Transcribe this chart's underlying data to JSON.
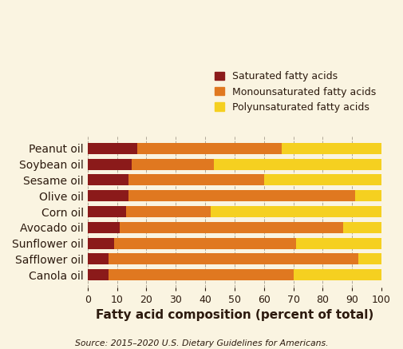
{
  "oils": [
    "Peanut oil",
    "Soybean oil",
    "Sesame oil",
    "Olive oil",
    "Corn oil",
    "Avocado oil",
    "Sunflower oil",
    "Safflower oil",
    "Canola oil"
  ],
  "saturated": [
    17,
    15,
    14,
    14,
    13,
    11,
    9,
    7,
    7
  ],
  "monounsaturated": [
    49,
    28,
    46,
    77,
    29,
    76,
    62,
    85,
    63
  ],
  "polyunsaturated": [
    34,
    57,
    40,
    9,
    58,
    13,
    29,
    8,
    30
  ],
  "colors": {
    "saturated": "#8B1A1A",
    "monounsaturated": "#E07820",
    "polyunsaturated": "#F5D020"
  },
  "background_color": "#FAF4E1",
  "xlabel": "Fatty acid composition (percent of total)",
  "source": "Source: 2015–2020 U.S. Dietary Guidelines for Americans.",
  "legend_labels": [
    "Saturated fatty acids",
    "Monounsaturated fatty acids",
    "Polyunsaturated fatty acids"
  ],
  "xlim": [
    0,
    100
  ],
  "xticks": [
    0,
    10,
    20,
    30,
    40,
    50,
    60,
    70,
    80,
    90,
    100
  ]
}
